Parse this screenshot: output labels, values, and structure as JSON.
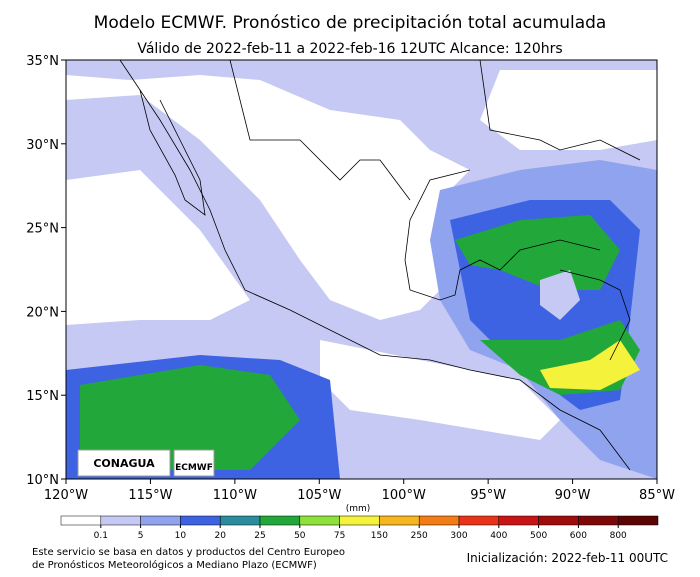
{
  "header": {
    "title": "Modelo ECMWF. Pronóstico de precipitación total acumulada",
    "subtitle": "Válido de 2022-feb-11 a 2022-feb-16 12UTC   Alcance: 120hrs"
  },
  "map": {
    "xlim": [
      -120,
      -85
    ],
    "ylim": [
      10,
      35
    ],
    "xticks": [
      {
        "value": -120,
        "label": "120°W"
      },
      {
        "value": -115,
        "label": "115°W"
      },
      {
        "value": -110,
        "label": "110°W"
      },
      {
        "value": -105,
        "label": "105°W"
      },
      {
        "value": -100,
        "label": "100°W"
      },
      {
        "value": -95,
        "label": "95°W"
      },
      {
        "value": -90,
        "label": "90°W"
      },
      {
        "value": -85,
        "label": "85°W"
      }
    ],
    "yticks": [
      {
        "value": 10,
        "label": "10°N"
      },
      {
        "value": 15,
        "label": "15°N"
      },
      {
        "value": 20,
        "label": "20°N"
      },
      {
        "value": 25,
        "label": "25°N"
      },
      {
        "value": 30,
        "label": "30°N"
      },
      {
        "value": 35,
        "label": "35°N"
      }
    ],
    "logos": [
      "CONAGUA",
      "ECMWF"
    ]
  },
  "colorbar": {
    "unit": "(mm)",
    "ticks": [
      0.1,
      5,
      10,
      20,
      25,
      50,
      75,
      150,
      250,
      300,
      400,
      500,
      600,
      800
    ],
    "colors": [
      "#ffffff",
      "#c5c9f3",
      "#8fa3ee",
      "#3d63e3",
      "#2a8c9c",
      "#22a83a",
      "#8ee03a",
      "#f4f23a",
      "#f7b61e",
      "#f47c16",
      "#e8321a",
      "#c81414",
      "#a00c0c",
      "#7c0808",
      "#5a0404"
    ]
  },
  "footer": {
    "note": [
      "Este servicio se basa en datos y productos del Centro Europeo",
      "de Pronósticos Meteorológicos a Mediano Plazo (ECMWF)"
    ],
    "init": "Inicialización: 2022-feb-11 00UTC"
  }
}
